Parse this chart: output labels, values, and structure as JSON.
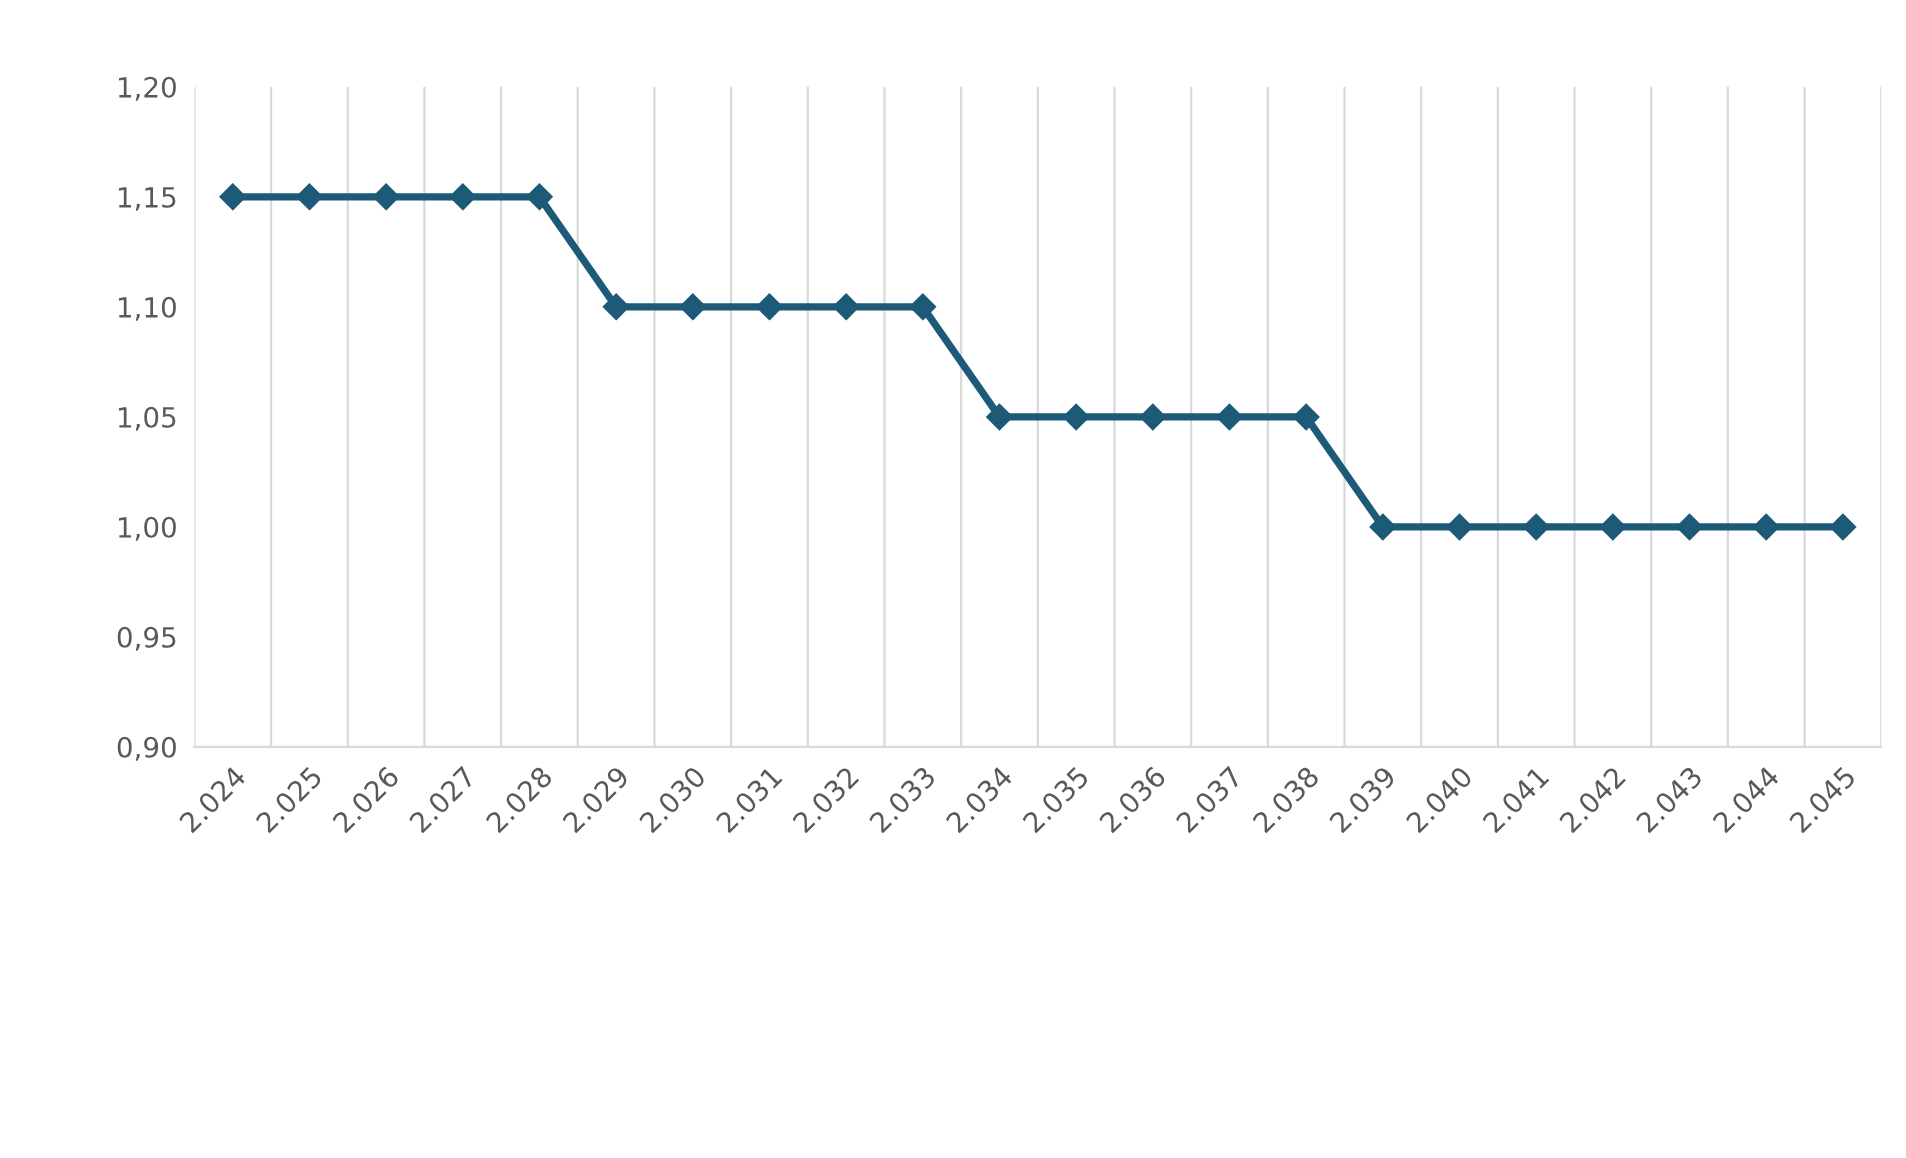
{
  "chart_data": {
    "type": "line",
    "categories": [
      "2.024",
      "2.025",
      "2.026",
      "2.027",
      "2.028",
      "2.029",
      "2.030",
      "2.031",
      "2.032",
      "2.033",
      "2.034",
      "2.035",
      "2.036",
      "2.037",
      "2.038",
      "2.039",
      "2.040",
      "2.041",
      "2.042",
      "2.043",
      "2.044",
      "2.045"
    ],
    "series": [
      {
        "color": "#1d5a78",
        "values": [
          1.15,
          1.15,
          1.15,
          1.15,
          1.15,
          1.1,
          1.1,
          1.1,
          1.1,
          1.1,
          1.05,
          1.05,
          1.05,
          1.05,
          1.05,
          1.0,
          1.0,
          1.0,
          1.0,
          1.0,
          1.0,
          1.0
        ]
      }
    ],
    "ylim": [
      0.9,
      1.2
    ],
    "yticks": [
      {
        "value": 0.9,
        "label": "0,90"
      },
      {
        "value": 0.95,
        "label": "0,95"
      },
      {
        "value": 1.0,
        "label": "1,00"
      },
      {
        "value": 1.05,
        "label": "1,05"
      },
      {
        "value": 1.1,
        "label": "1,10"
      },
      {
        "value": 1.15,
        "label": "1,15"
      },
      {
        "value": 1.2,
        "label": "1,20"
      }
    ],
    "grid": "x",
    "marker": "diamond",
    "line_style": "solid",
    "legend": false
  }
}
